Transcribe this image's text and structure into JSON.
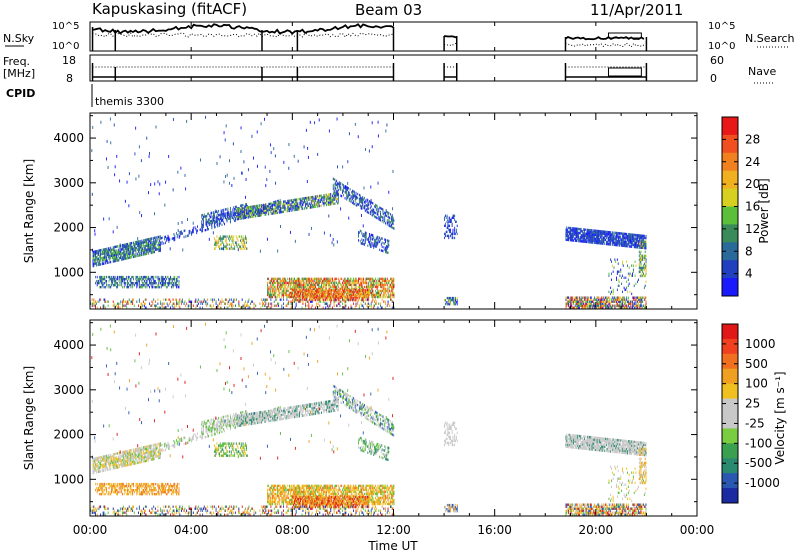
{
  "header": {
    "title": "Kapuskasing (fitACF)",
    "beam": "Beam 03",
    "date": "11/Apr/2011"
  },
  "top_panels": {
    "nsky_label": "N.Sky",
    "nsky_ticks": [
      "10^5",
      "10^0"
    ],
    "nsearch_label": "N.Search",
    "nsearch_ticks": [
      "10^5",
      "10^0"
    ],
    "freq_label_1": "Freq.",
    "freq_label_2": "[MHz]",
    "freq_ticks": [
      "18",
      "8"
    ],
    "nave_label": "Nave",
    "nave_ticks": [
      "60",
      "0"
    ],
    "cpid_label": "CPID",
    "cpid_text": "themis 3300"
  },
  "chart_data": [
    {
      "type": "heatmap",
      "name": "power-panel",
      "ylabel": "Slant Range [km]",
      "yticks": [
        1000,
        2000,
        3000,
        4000
      ],
      "ylim": [
        180,
        4560
      ],
      "xlabel": "",
      "colorbar_label": "Power [dB]",
      "colorbar_ticks": [
        "4",
        "8",
        "12",
        "16",
        "20",
        "24",
        "28"
      ],
      "colorbar_colors": [
        "#1a1aff",
        "#2040c0",
        "#2a6a9a",
        "#3a8a5a",
        "#5cbf3a",
        "#d8d020",
        "#f0b020",
        "#f08020",
        "#f05020",
        "#e81818"
      ]
    },
    {
      "type": "heatmap",
      "name": "velocity-panel",
      "ylabel": "Slant Range [km]",
      "yticks": [
        1000,
        2000,
        3000,
        4000
      ],
      "ylim": [
        180,
        4560
      ],
      "xlabel": "Time UT",
      "xticks": [
        "00:00",
        "04:00",
        "08:00",
        "12:00",
        "16:00",
        "20:00",
        "00:00"
      ],
      "xlim_hours": [
        0,
        24
      ],
      "colorbar_label": "Velocity [m s⁻¹]",
      "colorbar_ticks": [
        "1000",
        "500",
        "100",
        "25",
        "-25",
        "-100",
        "-500",
        "-1000"
      ],
      "colorbar_colors": [
        "#1a2aa0",
        "#2a58b0",
        "#2a8a70",
        "#3aa050",
        "#7acc40",
        "#c8c8c8",
        "#c8c8c8",
        "#f0c020",
        "#f0a020",
        "#f07020",
        "#f04020",
        "#e01818"
      ]
    }
  ]
}
